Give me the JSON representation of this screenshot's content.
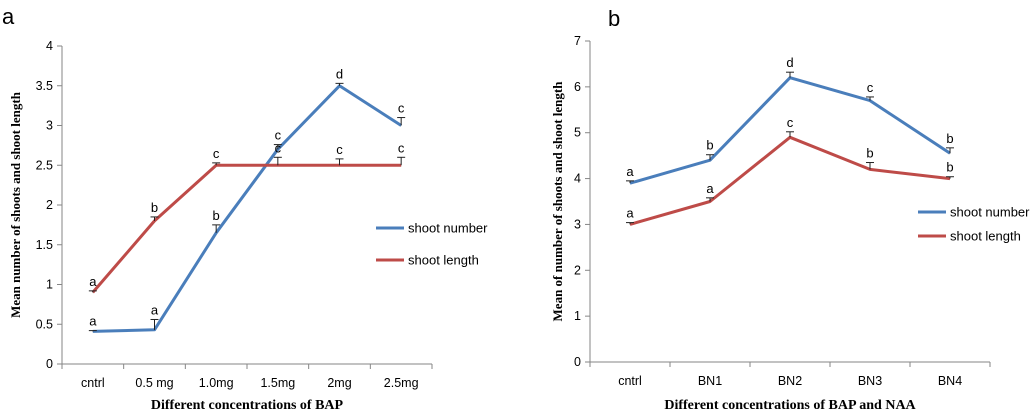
{
  "chart_data": [
    {
      "type": "line",
      "panel": "a",
      "categories": [
        "cntrl",
        "0.5 mg",
        "1.0mg",
        "1.5mg",
        "2mg",
        "2.5mg"
      ],
      "ylim": [
        0,
        4
      ],
      "yticks": [
        "0",
        "0.5",
        "1",
        "1.5",
        "2",
        "2.5",
        "3",
        "3.5",
        "4"
      ],
      "ylabel": "Mean number of shoots and shoot length",
      "xlabel": "Different concentrations of BAP",
      "legend_position": "right",
      "grid": false,
      "series": [
        {
          "name": "shoot number",
          "color": "#4a7ebb",
          "values": [
            0.41,
            0.43,
            1.65,
            2.7,
            3.5,
            3.0
          ],
          "errors": [
            0.01,
            0.13,
            0.1,
            0.06,
            0.03,
            0.1
          ],
          "letters": [
            "a",
            "a",
            "b",
            "c",
            "d",
            "c"
          ]
        },
        {
          "name": "shoot length",
          "color": "#be4b48",
          "values": [
            0.9,
            1.8,
            2.5,
            2.5,
            2.5,
            2.5
          ],
          "errors": [
            0.02,
            0.05,
            0.03,
            0.1,
            0.08,
            0.1
          ],
          "letters": [
            "a",
            "b",
            "c",
            "c",
            "c",
            "c"
          ]
        }
      ]
    },
    {
      "type": "line",
      "panel": "b",
      "categories": [
        "cntrl",
        "BN1",
        "BN2",
        "BN3",
        "BN4"
      ],
      "ylim": [
        0,
        7
      ],
      "yticks": [
        "0",
        "1",
        "2",
        "3",
        "4",
        "5",
        "6",
        "7"
      ],
      "ylabel": "Mean of number of shoots and shoot length",
      "xlabel": "Different concentrations of BAP and NAA",
      "legend_position": "right",
      "grid": false,
      "series": [
        {
          "name": "shoot number",
          "color": "#4a7ebb",
          "values": [
            3.9,
            4.4,
            6.2,
            5.7,
            4.55
          ],
          "errors": [
            0.05,
            0.12,
            0.12,
            0.08,
            0.12
          ],
          "letters": [
            "a",
            "b",
            "d",
            "c",
            "b"
          ]
        },
        {
          "name": "shoot length",
          "color": "#be4b48",
          "values": [
            3.0,
            3.5,
            4.9,
            4.2,
            4.0
          ],
          "errors": [
            0.04,
            0.08,
            0.12,
            0.15,
            0.04
          ],
          "letters": [
            "a",
            "a",
            "c",
            "b",
            "b"
          ]
        }
      ]
    }
  ]
}
